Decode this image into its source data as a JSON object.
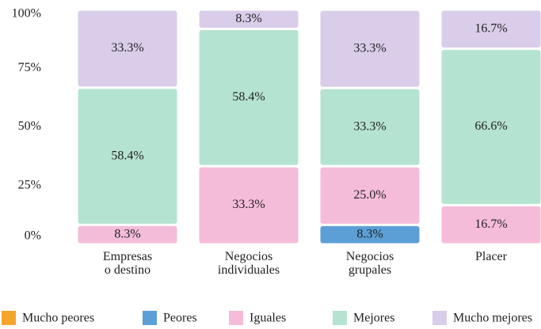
{
  "chart_data": {
    "type": "stacked_bar",
    "categories": [
      "Empresas\no destino",
      "Negocios\nindividuales",
      "Negocios\ngrupales",
      "Placer"
    ],
    "series": [
      {
        "name": "Mucho peores",
        "color": "#f5a52a",
        "values": [
          0,
          0,
          0,
          0
        ]
      },
      {
        "name": "Peores",
        "color": "#5b9fd6",
        "values": [
          0,
          0,
          8.3,
          0
        ],
        "value_labels": [
          null,
          null,
          "8.3%",
          null
        ]
      },
      {
        "name": "Iguales",
        "color": "#f5bcd9",
        "values": [
          8.3,
          33.3,
          25.0,
          16.7
        ],
        "value_labels": [
          "8.3%",
          "33.3%",
          "25.0%",
          "16.7%"
        ]
      },
      {
        "name": "Mejores",
        "color": "#b5e3d1",
        "values": [
          58.4,
          58.4,
          33.3,
          66.6
        ],
        "value_labels": [
          "58.4%",
          "58.4%",
          "33.3%",
          "66.6%"
        ]
      },
      {
        "name": "Mucho mejores",
        "color": "#d9cde9",
        "values": [
          33.3,
          8.3,
          33.3,
          16.7
        ],
        "value_labels": [
          "33.3%",
          "8.3%",
          "33.3%",
          "16.7%"
        ]
      }
    ],
    "ylim": [
      0,
      100
    ],
    "yticks": [
      {
        "value": 0,
        "label": "0%"
      },
      {
        "value": 25,
        "label": "25%"
      },
      {
        "value": 50,
        "label": "50%"
      },
      {
        "value": 75,
        "label": "75%"
      },
      {
        "value": 100,
        "label": "100%"
      }
    ],
    "legend": "bottom"
  }
}
